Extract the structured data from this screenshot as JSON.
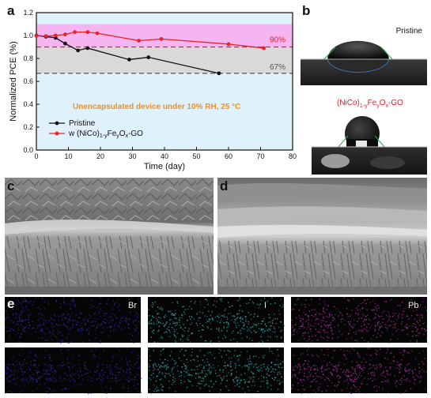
{
  "panel_letters": {
    "a": "a",
    "b": "b",
    "c": "c",
    "d": "d",
    "e": "e"
  },
  "chart_data": {
    "type": "line",
    "xlabel": "Time (day)",
    "ylabel": "Normalized PCE (%)",
    "xlim": [
      0,
      80
    ],
    "ylim": [
      0.0,
      1.2
    ],
    "xticks": [
      "0",
      "10",
      "20",
      "30",
      "40",
      "50",
      "60",
      "70",
      "80"
    ],
    "yticks": [
      "0.0",
      "0.2",
      "0.4",
      "0.6",
      "0.8",
      "1.0",
      "1.2"
    ],
    "annotation": "Unencapsulated device under 10% RH, 25 °C",
    "series": [
      {
        "name": "Pristine",
        "color": "#111111",
        "x": [
          0,
          3,
          6,
          9,
          13,
          16,
          29,
          35,
          57
        ],
        "y": [
          1.0,
          0.99,
          0.98,
          0.93,
          0.87,
          0.89,
          0.79,
          0.81,
          0.67
        ]
      },
      {
        "name": "w (NiCo)1-yFeyOx-GO",
        "color": "#e8202a",
        "x": [
          0,
          3,
          6,
          9,
          12,
          16,
          19,
          32,
          39,
          60,
          71
        ],
        "y": [
          1.0,
          0.995,
          1.0,
          1.01,
          1.03,
          1.03,
          1.02,
          0.955,
          0.97,
          0.925,
          0.89
        ]
      }
    ],
    "reference_lines": [
      {
        "label": "90%",
        "y": 0.9,
        "color": "#e8202a"
      },
      {
        "label": "67%",
        "y": 0.67,
        "color": "#555555"
      }
    ],
    "bands": [
      {
        "from": 0.9,
        "to": 1.1,
        "color": "#f5b5f0"
      },
      {
        "from": 0.67,
        "to": 0.9,
        "color": "#d9d9d9"
      }
    ],
    "legend_placement": "bottom-left",
    "grid": false
  },
  "panel_b": {
    "top_label": "Pristine",
    "bottom_label": "(NiCo)1-yFeyOx-GO",
    "bottom_label_color": "#e8202a"
  },
  "panel_e": {
    "labels": [
      "Br",
      "I",
      "Pb"
    ],
    "colors": [
      "#2a2aa0",
      "#2fa7a0",
      "#a03095"
    ]
  }
}
